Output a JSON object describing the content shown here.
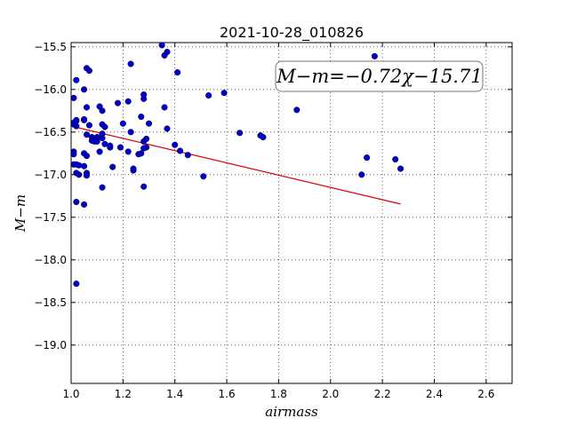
{
  "chart_data": {
    "type": "scatter",
    "title": "2021-10-28_010826",
    "xlabel": "airmass",
    "ylabel": "M−m",
    "xlim": [
      1.0,
      2.7
    ],
    "ylim": [
      -19.45,
      -15.45
    ],
    "y_inverted": true,
    "grid": true,
    "xticks": [
      "1.0",
      "1.2",
      "1.4",
      "1.6",
      "1.8",
      "2.0",
      "2.2",
      "2.4",
      "2.6"
    ],
    "yticks": [
      "−15.5",
      "−16.0",
      "−16.5",
      "−17.0",
      "−17.5",
      "−18.0",
      "−18.5",
      "−19.0"
    ],
    "annotation": "M−m=−0.72χ−15.71",
    "point_color": "#0000cc",
    "fit_color": "#dd0000",
    "fit": {
      "slope": -0.72,
      "intercept": -15.71,
      "x_range": [
        1.01,
        2.27
      ]
    },
    "series": [
      {
        "x": [
          1.01,
          1.01,
          1.02,
          1.02,
          1.01,
          1.01,
          1.02,
          1.01,
          1.02,
          1.03,
          1.03,
          1.02,
          1.02,
          1.02,
          1.01,
          1.02,
          1.05,
          1.06,
          1.07,
          1.05,
          1.06,
          1.05,
          1.07,
          1.06,
          1.08,
          1.09,
          1.09,
          1.1,
          1.08,
          1.1,
          1.06,
          1.06,
          1.05,
          1.06,
          1.05,
          1.05,
          1.11,
          1.12,
          1.13,
          1.12,
          1.13,
          1.11,
          1.12,
          1.12,
          1.15,
          1.16,
          1.15,
          1.12,
          1.18,
          1.2,
          1.19,
          1.22,
          1.23,
          1.24,
          1.22,
          1.23,
          1.24,
          1.26,
          1.27,
          1.27,
          1.28,
          1.28,
          1.28,
          1.29,
          1.3,
          1.29,
          1.28,
          1.28,
          1.36,
          1.37,
          1.37,
          1.36,
          1.35,
          1.41,
          1.4,
          1.42,
          1.45,
          1.51,
          1.53,
          1.59,
          1.65,
          1.73,
          1.74,
          1.87,
          2.12,
          2.14,
          2.17,
          2.25,
          2.27
        ],
        "y": [
          -16.1,
          -16.41,
          -16.43,
          -16.37,
          -16.73,
          -16.76,
          -16.88,
          -16.88,
          -16.98,
          -17.0,
          -16.89,
          -15.89,
          -17.32,
          -18.28,
          -16.39,
          -16.36,
          -16.0,
          -15.75,
          -15.78,
          -16.35,
          -16.21,
          -16.36,
          -16.42,
          -16.53,
          -16.56,
          -16.6,
          -16.61,
          -16.56,
          -16.6,
          -16.61,
          -16.98,
          -17.01,
          -16.9,
          -16.78,
          -16.75,
          -17.35,
          -16.2,
          -16.41,
          -16.44,
          -16.25,
          -16.64,
          -16.73,
          -17.15,
          -16.52,
          -16.68,
          -16.91,
          -16.66,
          -16.57,
          -16.16,
          -16.4,
          -16.68,
          -16.14,
          -15.7,
          -16.95,
          -16.73,
          -16.5,
          -16.93,
          -16.76,
          -16.75,
          -16.32,
          -16.06,
          -16.11,
          -16.61,
          -16.58,
          -16.4,
          -16.68,
          -16.69,
          -17.14,
          -16.21,
          -16.46,
          -15.56,
          -15.6,
          -15.48,
          -15.8,
          -16.65,
          -16.72,
          -16.77,
          -17.02,
          -16.07,
          -16.04,
          -16.51,
          -16.54,
          -16.56,
          -16.24,
          -17.0,
          -16.8,
          -15.61,
          -16.82,
          -16.93
        ]
      }
    ]
  }
}
